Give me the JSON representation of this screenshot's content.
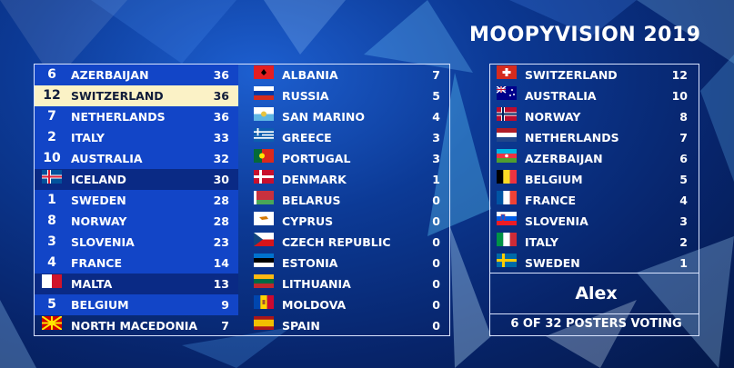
{
  "title": "MOOPYVISION 2019",
  "scoreboard_left": [
    {
      "pos": "6",
      "country": "AZERBAIJAN",
      "points": "36",
      "state": "hl"
    },
    {
      "pos": "12",
      "country": "SWITZERLAND",
      "points": "36",
      "state": "current"
    },
    {
      "pos": "7",
      "country": "NETHERLANDS",
      "points": "36",
      "state": "hl"
    },
    {
      "pos": "2",
      "country": "ITALY",
      "points": "33",
      "state": "hl"
    },
    {
      "pos": "10",
      "country": "AUSTRALIA",
      "points": "32",
      "state": "hl"
    },
    {
      "pos": "",
      "country": "ICELAND",
      "points": "30",
      "state": "dim",
      "flag": "iceland"
    },
    {
      "pos": "1",
      "country": "SWEDEN",
      "points": "28",
      "state": "hl"
    },
    {
      "pos": "8",
      "country": "NORWAY",
      "points": "28",
      "state": "hl"
    },
    {
      "pos": "3",
      "country": "SLOVENIA",
      "points": "23",
      "state": "hl"
    },
    {
      "pos": "4",
      "country": "FRANCE",
      "points": "14",
      "state": "hl"
    },
    {
      "pos": "",
      "country": "MALTA",
      "points": "13",
      "state": "dim",
      "flag": "malta"
    },
    {
      "pos": "5",
      "country": "BELGIUM",
      "points": "9",
      "state": "hl"
    },
    {
      "pos": "",
      "country": "NORTH MACEDONIA",
      "points": "7",
      "state": "none",
      "flag": "north-macedonia"
    }
  ],
  "scoreboard_mid": [
    {
      "country": "ALBANIA",
      "points": "7",
      "flag": "albania"
    },
    {
      "country": "RUSSIA",
      "points": "5",
      "flag": "russia"
    },
    {
      "country": "SAN MARINO",
      "points": "4",
      "flag": "san-marino"
    },
    {
      "country": "GREECE",
      "points": "3",
      "flag": "greece"
    },
    {
      "country": "PORTUGAL",
      "points": "3",
      "flag": "portugal"
    },
    {
      "country": "DENMARK",
      "points": "1",
      "flag": "denmark"
    },
    {
      "country": "BELARUS",
      "points": "0",
      "flag": "belarus"
    },
    {
      "country": "CYPRUS",
      "points": "0",
      "flag": "cyprus"
    },
    {
      "country": "CZECH REPUBLIC",
      "points": "0",
      "flag": "czech-republic"
    },
    {
      "country": "ESTONIA",
      "points": "0",
      "flag": "estonia"
    },
    {
      "country": "LITHUANIA",
      "points": "0",
      "flag": "lithuania"
    },
    {
      "country": "MOLDOVA",
      "points": "0",
      "flag": "moldova"
    },
    {
      "country": "SPAIN",
      "points": "0",
      "flag": "spain"
    }
  ],
  "votes": [
    {
      "country": "SWITZERLAND",
      "points": "12",
      "flag": "switzerland"
    },
    {
      "country": "AUSTRALIA",
      "points": "10",
      "flag": "australia"
    },
    {
      "country": "NORWAY",
      "points": "8",
      "flag": "norway"
    },
    {
      "country": "NETHERLANDS",
      "points": "7",
      "flag": "netherlands"
    },
    {
      "country": "AZERBAIJAN",
      "points": "6",
      "flag": "azerbaijan"
    },
    {
      "country": "BELGIUM",
      "points": "5",
      "flag": "belgium"
    },
    {
      "country": "FRANCE",
      "points": "4",
      "flag": "france"
    },
    {
      "country": "SLOVENIA",
      "points": "3",
      "flag": "slovenia"
    },
    {
      "country": "ITALY",
      "points": "2",
      "flag": "italy"
    },
    {
      "country": "SWEDEN",
      "points": "1",
      "flag": "sweden"
    }
  ],
  "voter_name": "Alex",
  "voting_status": "6 OF 32 POSTERS VOTING",
  "colors": {
    "highlight": "#1245c7",
    "dim": "#0a2a85",
    "current": "#fbf2c6",
    "border": "#d9e4ff"
  }
}
